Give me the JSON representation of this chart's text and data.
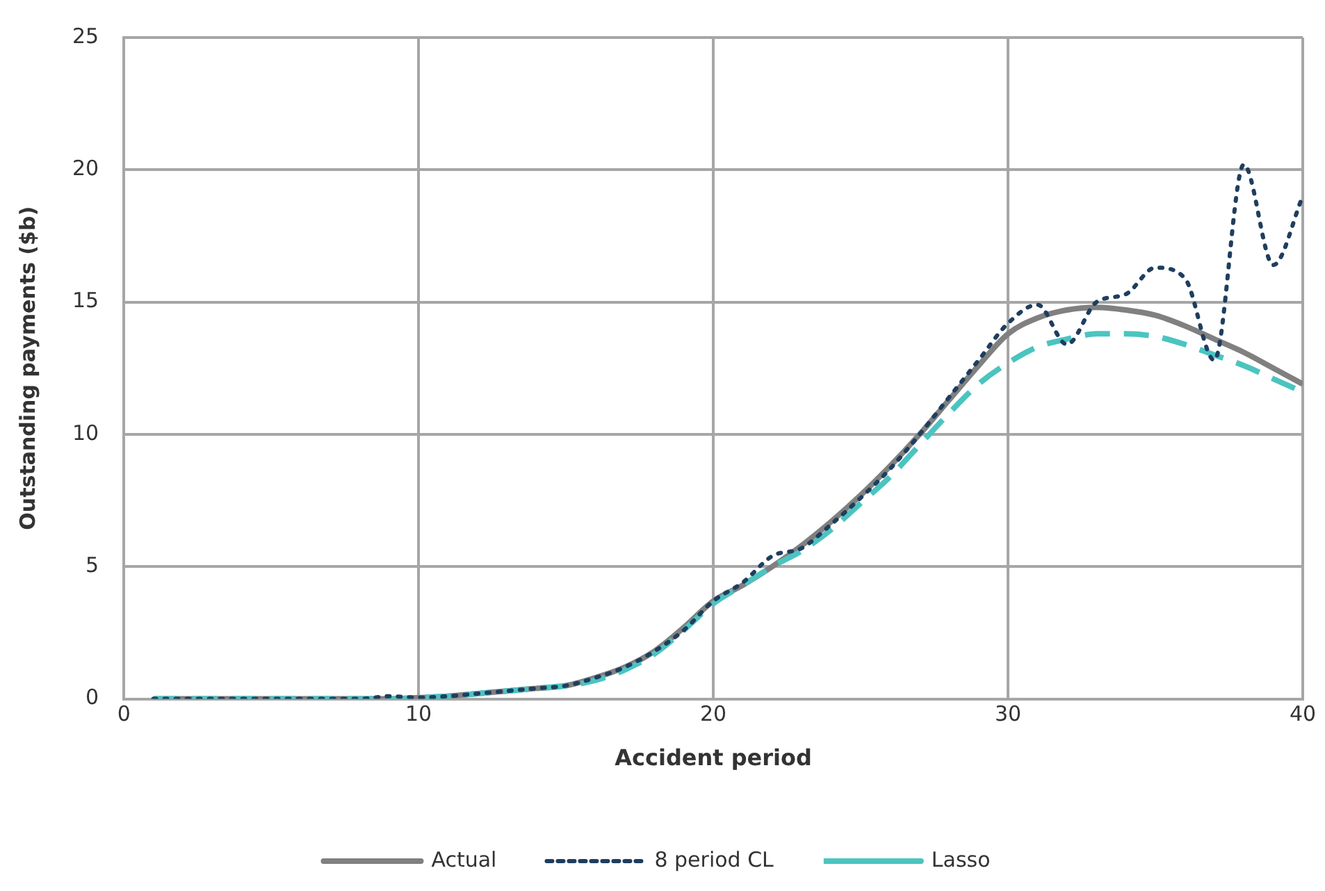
{
  "chart_data": {
    "type": "line",
    "xlabel": "Accident period",
    "ylabel": "Outstanding payments ($b)",
    "x": [
      1,
      2,
      3,
      4,
      5,
      6,
      7,
      8,
      9,
      10,
      11,
      12,
      13,
      14,
      15,
      16,
      17,
      18,
      19,
      20,
      21,
      22,
      23,
      24,
      25,
      26,
      27,
      28,
      29,
      30,
      31,
      32,
      33,
      34,
      35,
      36,
      37,
      38,
      39,
      40
    ],
    "series": [
      {
        "name": "Actual",
        "color": "#808080",
        "line_style": "solid",
        "values": [
          0,
          0,
          0,
          0,
          0,
          0,
          0,
          0,
          0,
          0.05,
          0.1,
          0.2,
          0.3,
          0.4,
          0.5,
          0.8,
          1.2,
          1.8,
          2.7,
          3.7,
          4.3,
          5.0,
          5.8,
          6.7,
          7.7,
          8.8,
          10.0,
          11.3,
          12.6,
          13.8,
          14.4,
          14.7,
          14.8,
          14.7,
          14.5,
          14.1,
          13.6,
          13.1,
          12.5,
          11.9
        ]
      },
      {
        "name": "8 period CL",
        "color": "#1f3e5f",
        "line_style": "dotted",
        "values": [
          0,
          0,
          0,
          0,
          0,
          0,
          0,
          0,
          0.1,
          0.05,
          0.1,
          0.2,
          0.3,
          0.4,
          0.5,
          0.8,
          1.2,
          1.8,
          2.6,
          3.7,
          4.4,
          5.4,
          5.7,
          6.6,
          7.6,
          8.7,
          10.0,
          11.4,
          12.8,
          14.2,
          14.9,
          13.4,
          15.0,
          15.3,
          16.3,
          15.9,
          12.8,
          20.2,
          16.4,
          19.0
        ]
      },
      {
        "name": "Lasso",
        "color": "#4bc4c0",
        "line_style": "dashed",
        "values": [
          0,
          0,
          0,
          0,
          0,
          0,
          0,
          0,
          0,
          0.05,
          0.1,
          0.2,
          0.3,
          0.4,
          0.5,
          0.7,
          1.1,
          1.7,
          2.6,
          3.6,
          4.3,
          5.0,
          5.6,
          6.4,
          7.4,
          8.4,
          9.6,
          10.8,
          11.9,
          12.7,
          13.3,
          13.6,
          13.8,
          13.8,
          13.7,
          13.4,
          13.0,
          12.6,
          12.1,
          11.6
        ]
      }
    ],
    "xlim": [
      0,
      40
    ],
    "xticks": [
      0,
      10,
      20,
      30,
      40
    ],
    "ylim": [
      0,
      25
    ],
    "yticks": [
      0,
      5,
      10,
      15,
      20,
      25
    ],
    "grid": true,
    "legend": "bottom",
    "marker": "none"
  }
}
